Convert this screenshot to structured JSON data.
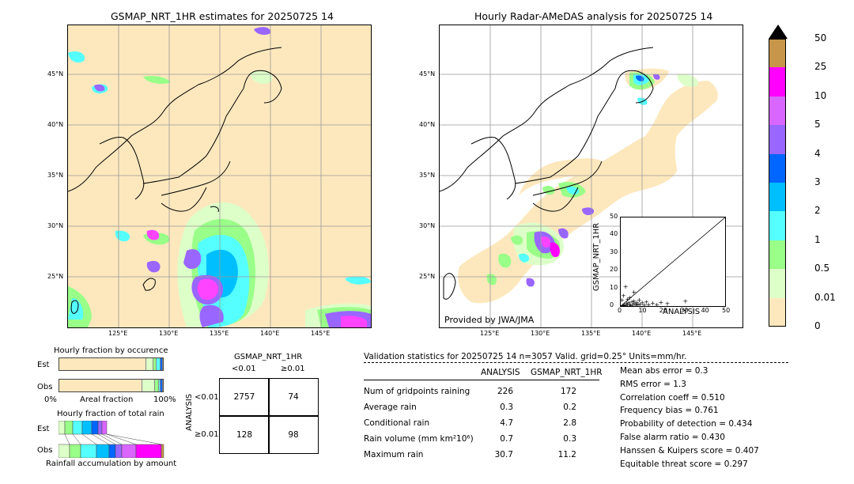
{
  "left_map": {
    "title": "GSMAP_NRT_1HR estimates for 20250725 14",
    "lat_labels": [
      "45°N",
      "40°N",
      "35°N",
      "30°N",
      "25°N"
    ],
    "lon_labels": [
      "125°E",
      "130°E",
      "135°E",
      "140°E",
      "145°E"
    ]
  },
  "right_map": {
    "title": "Hourly Radar-AMeDAS analysis for 20250725 14",
    "lat_labels": [
      "45°N",
      "40°N",
      "35°N",
      "30°N",
      "25°N"
    ],
    "lon_labels": [
      "125°E",
      "130°E",
      "135°E",
      "140°E",
      "145°E"
    ],
    "credit": "Provided by JWA/JMA"
  },
  "colorbar": {
    "labels": [
      "50",
      "25",
      "10",
      "5",
      "4",
      "3",
      "2",
      "1",
      "0.5",
      "0.01",
      "0"
    ],
    "colors": [
      "#c8964a",
      "#ff00ff",
      "#d966ff",
      "#9966ff",
      "#0066ff",
      "#00bfff",
      "#55ffff",
      "#99ff88",
      "#ddffc8",
      "#fde8bd"
    ],
    "over_color": "#000000"
  },
  "chart_data": [
    {
      "type": "scatter",
      "xlabel": "ANALYSIS",
      "ylabel": "GSMAP_NRT_1HR",
      "xlim": [
        0,
        50
      ],
      "ylim": [
        0,
        50
      ],
      "xticks": [
        "0",
        "10",
        "20",
        "30",
        "40",
        "50"
      ],
      "yticks": [
        "0",
        "10",
        "20",
        "30",
        "40",
        "50"
      ],
      "points": [
        [
          0.5,
          0.2
        ],
        [
          1,
          0.5
        ],
        [
          1.5,
          1
        ],
        [
          2,
          0.3
        ],
        [
          2.5,
          1.5
        ],
        [
          3,
          0.8
        ],
        [
          3.5,
          2
        ],
        [
          4,
          1
        ],
        [
          4.5,
          0.5
        ],
        [
          5,
          2.5
        ],
        [
          5.5,
          1
        ],
        [
          6,
          3
        ],
        [
          6.5,
          1.5
        ],
        [
          7,
          0.7
        ],
        [
          7.5,
          2
        ],
        [
          8,
          1
        ],
        [
          8.5,
          3.5
        ],
        [
          9,
          1.2
        ],
        [
          10,
          2
        ],
        [
          11,
          0.6
        ],
        [
          12,
          2.5
        ],
        [
          13,
          1
        ],
        [
          15,
          1.8
        ],
        [
          17,
          0.9
        ],
        [
          19,
          2.2
        ],
        [
          22,
          1.5
        ],
        [
          30.7,
          3
        ],
        [
          1,
          6
        ],
        [
          2,
          11.2
        ],
        [
          3,
          4
        ],
        [
          0.3,
          3.5
        ],
        [
          6,
          8
        ],
        [
          4,
          5
        ]
      ]
    },
    {
      "type": "bar",
      "title": "Hourly fraction by occurence",
      "categories": [
        "Est",
        "Obs"
      ],
      "xlabel": "Areal fraction",
      "xticks": [
        "0%",
        "100%"
      ],
      "series": [
        {
          "values": [
            0.84,
            0.8
          ]
        },
        {
          "values": [
            0.07,
            0.12
          ]
        },
        {
          "values": [
            0.03,
            0.04
          ]
        },
        {
          "values": [
            0.04,
            0.02
          ]
        },
        {
          "values": [
            0.02,
            0.02
          ]
        }
      ]
    },
    {
      "type": "bar",
      "title": "Hourly fraction of total rain",
      "categories": [
        "Est",
        "Obs"
      ],
      "xlabel": "Rainfall accumulation by amount"
    }
  ],
  "contingency": {
    "title": "GSMAP_NRT_1HR",
    "col_headers": [
      "<0.01",
      "≥0.01"
    ],
    "row_label": "ANALYSIS",
    "row_headers": [
      "<0.01",
      "≥0.01"
    ],
    "cells": [
      [
        "2757",
        "74"
      ],
      [
        "128",
        "98"
      ]
    ]
  },
  "validation": {
    "header": "Validation statistics for 20250725 14  n=3057 Valid. grid=0.25° Units=mm/hr.",
    "col_analysis": "ANALYSIS",
    "col_gsmap": "GSMAP_NRT_1HR",
    "rows": [
      {
        "label": "Num of gridpoints raining",
        "a": "226",
        "g": "172"
      },
      {
        "label": "Average rain",
        "a": "0.3",
        "g": "0.2"
      },
      {
        "label": "Conditional rain",
        "a": "4.7",
        "g": "2.8"
      },
      {
        "label": "Rain volume (mm km²10⁶)",
        "a": "0.7",
        "g": "0.3"
      },
      {
        "label": "Maximum rain",
        "a": "30.7",
        "g": "11.2"
      }
    ],
    "scores": [
      "Mean abs error =    0.3",
      "RMS error =    1.3",
      "Correlation coeff =  0.510",
      "Frequency bias =  0.761",
      "Probability of detection =  0.434",
      "False alarm ratio =  0.430",
      "Hanssen & Kuipers score =  0.407",
      "Equitable threat score =  0.297"
    ]
  }
}
